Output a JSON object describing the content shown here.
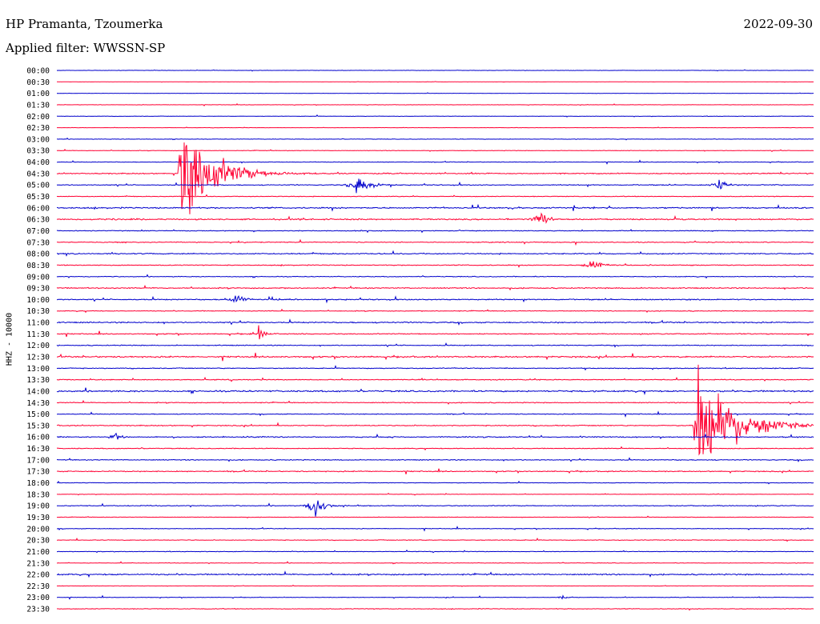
{
  "header": {
    "station": "HP Pramanta, Tzoumerka",
    "date": "2022-09-30",
    "filter": "Applied filter: WWSSN-SP"
  },
  "channel_label": "HHZ - 10000",
  "colors": {
    "odd": "#0000cc",
    "even": "#ff0033",
    "text": "#000000"
  },
  "chart_data": {
    "type": "line",
    "title": "",
    "xlabel": "",
    "ylabel": "HHZ - 10000",
    "row_labels": [
      "00:00",
      "00:30",
      "01:00",
      "01:30",
      "02:00",
      "02:30",
      "03:00",
      "03:30",
      "04:00",
      "04:30",
      "05:00",
      "05:30",
      "06:00",
      "06:30",
      "07:00",
      "07:30",
      "08:00",
      "08:30",
      "09:00",
      "09:30",
      "10:00",
      "10:30",
      "11:00",
      "11:30",
      "12:00",
      "12:30",
      "13:00",
      "13:30",
      "14:00",
      "14:30",
      "15:00",
      "15:30",
      "16:00",
      "16:30",
      "17:00",
      "17:30",
      "18:00",
      "18:30",
      "19:00",
      "19:30",
      "20:00",
      "20:30",
      "21:00",
      "21:30",
      "22:00",
      "22:30",
      "23:00",
      "23:30"
    ],
    "noise_level": [
      0.3,
      0.2,
      0.2,
      0.3,
      0.4,
      0.2,
      0.4,
      0.5,
      0.5,
      1.0,
      0.8,
      0.6,
      1.2,
      1.2,
      0.7,
      0.8,
      1.0,
      0.8,
      0.7,
      1.0,
      1.0,
      0.7,
      1.1,
      0.9,
      0.8,
      1.3,
      0.8,
      0.8,
      1.4,
      0.8,
      0.7,
      0.9,
      1.0,
      0.7,
      0.8,
      0.9,
      0.5,
      0.4,
      0.8,
      0.4,
      0.6,
      0.6,
      0.5,
      0.5,
      1.2,
      0.3,
      0.5,
      0.6
    ],
    "events": [
      {
        "row": 9,
        "minute": 4.8,
        "amplitude": 48,
        "duration": 3.2,
        "kind": "quake"
      },
      {
        "row": 10,
        "minute": 11.9,
        "amplitude": 10,
        "duration": 1.2,
        "kind": "burst"
      },
      {
        "row": 10,
        "minute": 26.2,
        "amplitude": 6,
        "duration": 0.8,
        "kind": "burst"
      },
      {
        "row": 13,
        "minute": 19.2,
        "amplitude": 7,
        "duration": 1.2,
        "kind": "burst"
      },
      {
        "row": 17,
        "minute": 21.2,
        "amplitude": 5,
        "duration": 1.2,
        "kind": "burst"
      },
      {
        "row": 20,
        "minute": 7.1,
        "amplitude": 5,
        "duration": 1.0,
        "kind": "burst"
      },
      {
        "row": 23,
        "minute": 8.0,
        "amplitude": 6,
        "duration": 0.8,
        "kind": "burst"
      },
      {
        "row": 31,
        "minute": 25.2,
        "amplitude": 50,
        "duration": 3.5,
        "kind": "quake"
      },
      {
        "row": 32,
        "minute": 2.3,
        "amplitude": 4,
        "duration": 0.7,
        "kind": "burst"
      },
      {
        "row": 38,
        "minute": 10.2,
        "amplitude": 9,
        "duration": 1.0,
        "kind": "burst"
      },
      {
        "row": 46,
        "minute": 20.0,
        "amplitude": 3,
        "duration": 0.5,
        "kind": "burst"
      }
    ]
  }
}
